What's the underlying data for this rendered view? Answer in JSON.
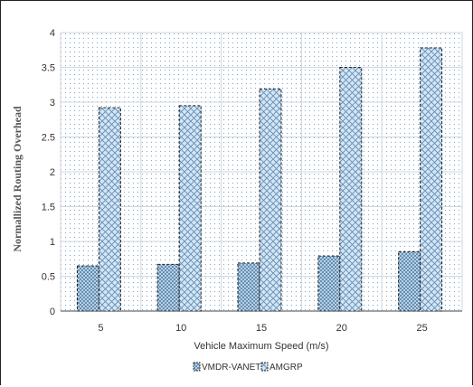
{
  "chart_data": {
    "type": "bar",
    "title": "",
    "xlabel": "Vehicle Maximum Speed (m/s)",
    "ylabel": "Normallized Routing Overhead",
    "categories": [
      "5",
      "10",
      "15",
      "20",
      "25"
    ],
    "series": [
      {
        "name": "VMDR-VANET",
        "values": [
          0.65,
          0.67,
          0.69,
          0.79,
          0.85
        ]
      },
      {
        "name": "AMGRP",
        "values": [
          2.92,
          2.95,
          3.19,
          3.5,
          3.78
        ]
      }
    ],
    "ylim": [
      0,
      4
    ],
    "yticks": [
      "0",
      "0.5",
      "1",
      "1.5",
      "2",
      "2.5",
      "3",
      "3.5",
      "4"
    ],
    "grid": true,
    "legend_position": "bottom-center",
    "colors": {
      "bar_fill": "#c9dcef",
      "bar_stroke": "#222222",
      "plot_bg_dots": "#7aa8c8",
      "grid": "#cfd6dd"
    }
  }
}
